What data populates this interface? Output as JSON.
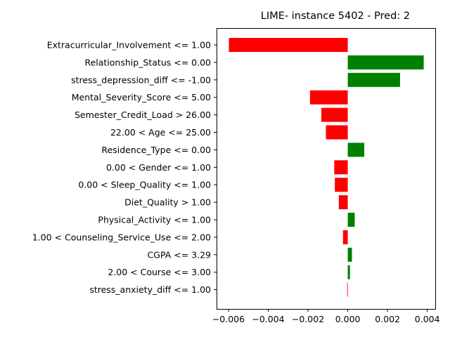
{
  "chart_data": {
    "type": "bar",
    "orientation": "horizontal",
    "title": "LIME- instance 5402 - Pred: 2",
    "xlabel": "",
    "ylabel": "",
    "xlim": [
      -0.0066,
      0.0044
    ],
    "xticks": [
      -0.006,
      -0.004,
      -0.002,
      0.0,
      0.002,
      0.004
    ],
    "xtick_labels": [
      "−0.006",
      "−0.004",
      "−0.002",
      "0.000",
      "0.002",
      "0.004"
    ],
    "grid": false,
    "legend": "none",
    "colors": {
      "positive": "#008000",
      "negative": "#ff0000"
    },
    "categories": [
      "Extracurricular_Involvement <= 1.00",
      "Relationship_Status <= 0.00",
      "stress_depression_diff <= -1.00",
      "Mental_Severity_Score <= 5.00",
      "Semester_Credit_Load > 26.00",
      "22.00 < Age <= 25.00",
      "Residence_Type <= 0.00",
      "0.00 < Gender <= 1.00",
      "0.00 < Sleep_Quality <= 1.00",
      "Diet_Quality > 1.00",
      "Physical_Activity <= 1.00",
      "1.00 < Counseling_Service_Use <= 2.00",
      "CGPA <= 3.29",
      "2.00 < Course <= 3.00",
      "stress_anxiety_diff <= 1.00"
    ],
    "values": [
      -0.00598,
      0.00382,
      0.00263,
      -0.0019,
      -0.00133,
      -0.0011,
      0.00083,
      -0.00068,
      -0.00065,
      -0.00045,
      0.00035,
      -0.00024,
      0.00021,
      0.00011,
      -3e-05
    ]
  }
}
